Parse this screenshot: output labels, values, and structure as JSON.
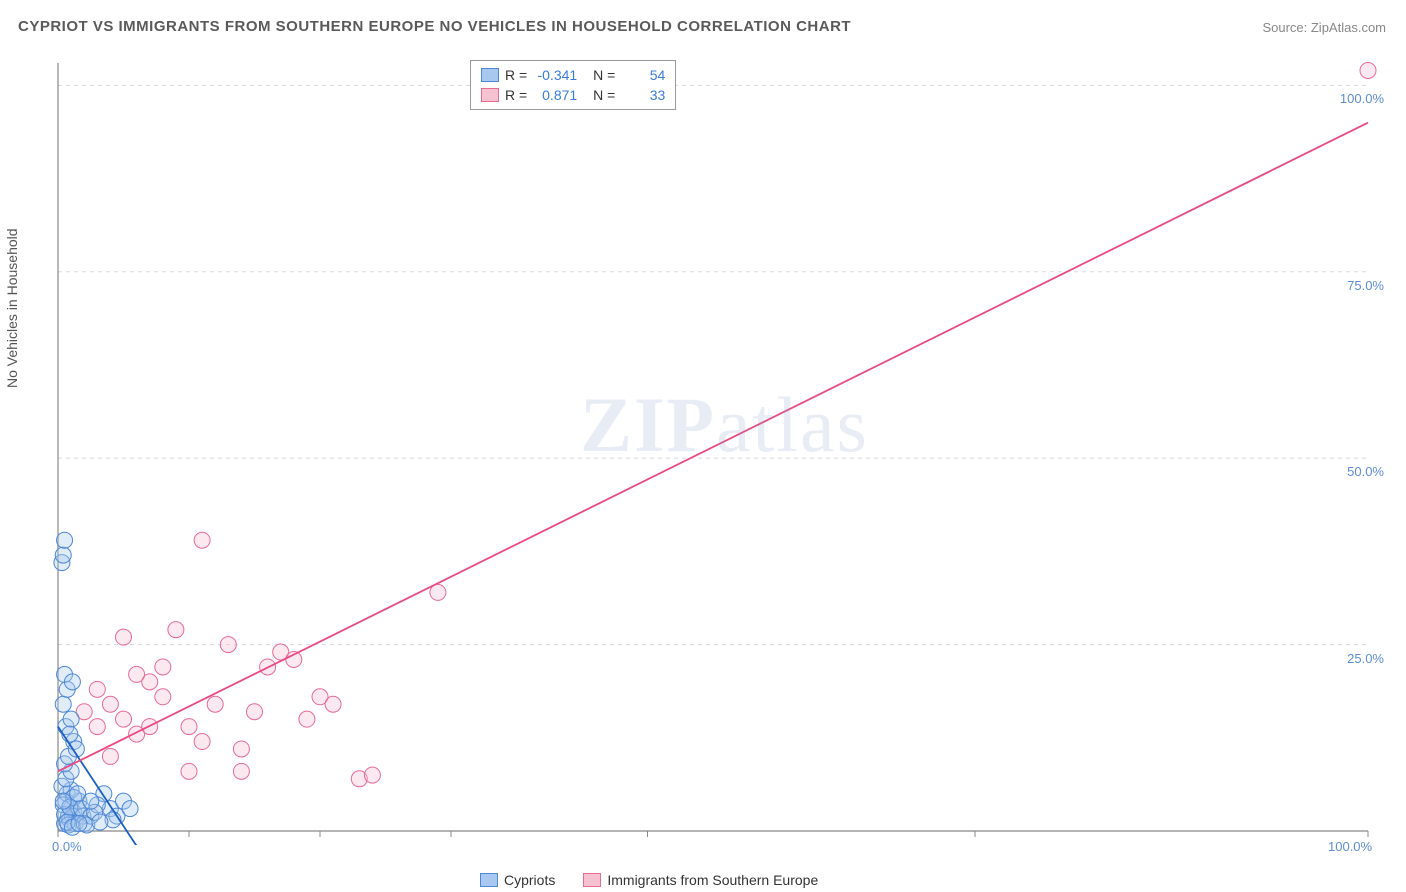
{
  "title": "CYPRIOT VS IMMIGRANTS FROM SOUTHERN EUROPE NO VEHICLES IN HOUSEHOLD CORRELATION CHART",
  "source": "Source: ZipAtlas.com",
  "y_axis_label": "No Vehicles in Household",
  "watermark": "ZIPatlas",
  "chart": {
    "type": "scatter",
    "background_color": "#ffffff",
    "grid_color": "#d8d8d8",
    "axis_color": "#888888",
    "tick_label_color": "#5b8dd6",
    "tick_fontsize": 13,
    "xlim": [
      0,
      100
    ],
    "ylim": [
      0,
      103
    ],
    "x_ticks": [
      0,
      100
    ],
    "x_tick_labels": [
      "0.0%",
      "100.0%"
    ],
    "x_minor_ticks": [
      10,
      20,
      30,
      45,
      70
    ],
    "y_ticks": [
      25,
      50,
      75,
      100
    ],
    "y_tick_labels": [
      "25.0%",
      "50.0%",
      "75.0%",
      "100.0%"
    ],
    "marker_radius": 8,
    "marker_opacity": 0.35,
    "line_width": 1.8
  },
  "series": {
    "cypriots": {
      "label": "Cypriots",
      "fill_color": "#a8c8ef",
      "stroke_color": "#4d87d6",
      "trend_line_color": "#1b5fc1",
      "R": "-0.341",
      "N": "54",
      "trend_line": {
        "x1": 0,
        "y1": 14,
        "x2": 6,
        "y2": -2
      },
      "points": [
        [
          0.5,
          1
        ],
        [
          0.8,
          2
        ],
        [
          1,
          3
        ],
        [
          1.2,
          2.5
        ],
        [
          0.6,
          4
        ],
        [
          0.9,
          1.5
        ],
        [
          1.5,
          3
        ],
        [
          0.7,
          5
        ],
        [
          1.1,
          2
        ],
        [
          0.4,
          3.5
        ],
        [
          1.3,
          1
        ],
        [
          1.6,
          4
        ],
        [
          0.5,
          2.2
        ],
        [
          1,
          5.5
        ],
        [
          0.8,
          0.8
        ],
        [
          1.9,
          2
        ],
        [
          0.3,
          6
        ],
        [
          1.2,
          4.5
        ],
        [
          0.7,
          1.2
        ],
        [
          1.5,
          5
        ],
        [
          0.9,
          3.2
        ],
        [
          0.6,
          7
        ],
        [
          1.1,
          0.5
        ],
        [
          1.8,
          3
        ],
        [
          0.4,
          4
        ],
        [
          1,
          8
        ],
        [
          0.5,
          9
        ],
        [
          0.8,
          10
        ],
        [
          1.2,
          12
        ],
        [
          0.6,
          14
        ],
        [
          1,
          15
        ],
        [
          0.4,
          17
        ],
        [
          0.7,
          19
        ],
        [
          0.5,
          21
        ],
        [
          1.1,
          20
        ],
        [
          0.3,
          36
        ],
        [
          0.4,
          37
        ],
        [
          0.5,
          39
        ],
        [
          4,
          3
        ],
        [
          5,
          4
        ],
        [
          4.5,
          2
        ],
        [
          5.5,
          3
        ],
        [
          3.5,
          5
        ],
        [
          4.2,
          1.5
        ],
        [
          2,
          1
        ],
        [
          2.5,
          2
        ],
        [
          3,
          3.5
        ],
        [
          2.2,
          0.8
        ],
        [
          2.8,
          2.5
        ],
        [
          3.2,
          1.2
        ],
        [
          2.5,
          4
        ],
        [
          1.4,
          11
        ],
        [
          0.9,
          13
        ],
        [
          1.6,
          1
        ]
      ]
    },
    "immigrants": {
      "label": "Immigrants from Southern Europe",
      "fill_color": "#f6c1d0",
      "stroke_color": "#e76b94",
      "trend_line_color": "#e84b84",
      "R": "0.871",
      "N": "33",
      "trend_line": {
        "x1": 0,
        "y1": 8,
        "x2": 100,
        "y2": 95
      },
      "points": [
        [
          3,
          14
        ],
        [
          4,
          17
        ],
        [
          5,
          15
        ],
        [
          6,
          13
        ],
        [
          7,
          20
        ],
        [
          8,
          18
        ],
        [
          10,
          14
        ],
        [
          11,
          12
        ],
        [
          12,
          17
        ],
        [
          13,
          25
        ],
        [
          14,
          11
        ],
        [
          15,
          16
        ],
        [
          16,
          22
        ],
        [
          17,
          24
        ],
        [
          18,
          23
        ],
        [
          19,
          15
        ],
        [
          20,
          18
        ],
        [
          21,
          17
        ],
        [
          9,
          27
        ],
        [
          23,
          7
        ],
        [
          24,
          7.5
        ],
        [
          29,
          32
        ],
        [
          11,
          39
        ],
        [
          14,
          8
        ],
        [
          6,
          21
        ],
        [
          4,
          10
        ],
        [
          100,
          102
        ],
        [
          8,
          22
        ],
        [
          10,
          8
        ],
        [
          7,
          14
        ],
        [
          5,
          26
        ],
        [
          3,
          19
        ],
        [
          2,
          16
        ]
      ]
    }
  },
  "stats_legend": {
    "rows": [
      {
        "swatch_fill": "#a8c8ef",
        "swatch_stroke": "#4d87d6",
        "R_label": "R =",
        "R_val": "-0.341",
        "N_label": "N =",
        "N_val": "54"
      },
      {
        "swatch_fill": "#f6c1d0",
        "swatch_stroke": "#e76b94",
        "R_label": "R =",
        "R_val": "0.871",
        "N_label": "N =",
        "N_val": "33"
      }
    ]
  },
  "bottom_legend": {
    "items": [
      {
        "swatch_fill": "#a8c8ef",
        "swatch_stroke": "#4d87d6",
        "label": "Cypriots"
      },
      {
        "swatch_fill": "#f6c1d0",
        "swatch_stroke": "#e76b94",
        "label": "Immigrants from Southern Europe"
      }
    ]
  }
}
